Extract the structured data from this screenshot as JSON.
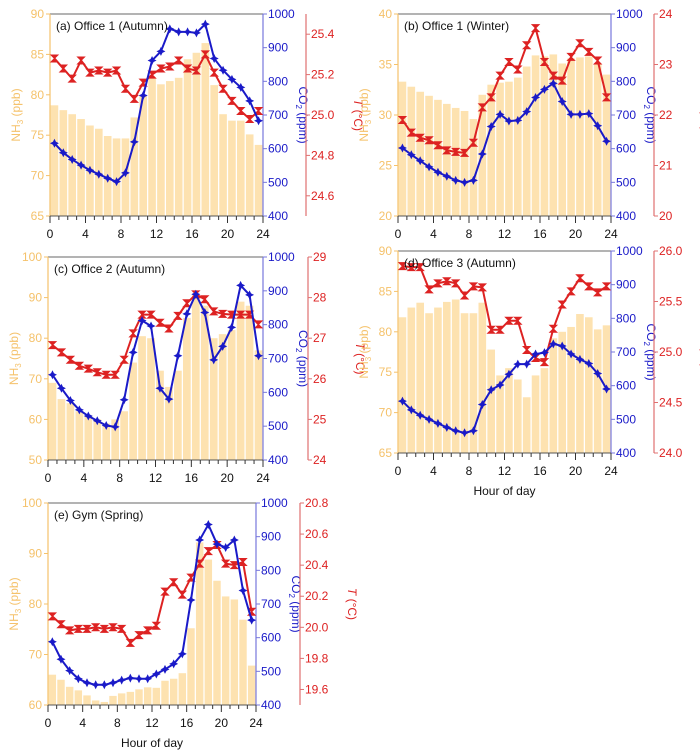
{
  "figure": {
    "xlabel": "Hour of day",
    "colors": {
      "nh3": "#f5c26b",
      "nh3_bar": "#fde2b0",
      "co2": "#1a1ac8",
      "temp": "#dd2222"
    }
  },
  "chart_data": [
    {
      "type": "bar+line",
      "title": "(a) Office 1 (Autumn)",
      "xlabel": "",
      "x": [
        0.5,
        1.5,
        2.5,
        3.5,
        4.5,
        5.5,
        6.5,
        7.5,
        8.5,
        9.5,
        10.5,
        11.5,
        12.5,
        13.5,
        14.5,
        15.5,
        16.5,
        17.5,
        18.5,
        19.5,
        20.5,
        21.5,
        22.5,
        23.5
      ],
      "xlim": [
        0,
        24
      ],
      "xticks": [
        "0",
        "4",
        "8",
        "12",
        "16",
        "20",
        "24"
      ],
      "y_left": {
        "label": "NH3 (ppb)",
        "lim": [
          65,
          90
        ],
        "ticks": [
          "65",
          "70",
          "75",
          "80",
          "85",
          "90"
        ]
      },
      "y_right1": {
        "label": "CO2 (ppm)",
        "lim": [
          400,
          1000
        ],
        "ticks": [
          "400",
          "500",
          "600",
          "700",
          "800",
          "900",
          "1000"
        ]
      },
      "y_right2": {
        "label": "T (°C)",
        "lim": [
          24.5,
          25.5
        ],
        "ticks": [
          "24.6",
          "24.8",
          "25.0",
          "25.2",
          "25.4"
        ]
      },
      "series": [
        {
          "name": "NH3",
          "kind": "bar",
          "values": [
            78.7,
            78.1,
            77.6,
            77.0,
            76.2,
            75.8,
            74.9,
            74.6,
            74.6,
            77.2,
            80.0,
            82.1,
            81.3,
            81.7,
            82.1,
            84.4,
            85.2,
            86.4,
            81.2,
            77.6,
            76.8,
            76.8,
            75.1,
            73.8
          ]
        },
        {
          "name": "CO2",
          "kind": "line",
          "values": [
            616,
            588,
            568,
            551,
            536,
            524,
            512,
            502,
            528,
            620,
            758,
            862,
            889,
            956,
            947,
            947,
            944,
            970,
            868,
            833,
            806,
            782,
            742,
            683
          ]
        },
        {
          "name": "T",
          "kind": "line",
          "values": [
            25.28,
            25.23,
            25.18,
            25.27,
            25.21,
            25.22,
            25.21,
            25.22,
            25.13,
            25.08,
            25.16,
            25.2,
            25.23,
            25.24,
            25.27,
            25.23,
            25.22,
            25.3,
            25.21,
            25.13,
            25.07,
            25.02,
            24.98,
            25.02
          ]
        }
      ]
    },
    {
      "type": "bar+line",
      "title": "(b) Office 1 (Winter)",
      "xlabel": "",
      "x": [
        0.5,
        1.5,
        2.5,
        3.5,
        4.5,
        5.5,
        6.5,
        7.5,
        8.5,
        9.5,
        10.5,
        11.5,
        12.5,
        13.5,
        14.5,
        15.5,
        16.5,
        17.5,
        18.5,
        19.5,
        20.5,
        21.5,
        22.5,
        23.5
      ],
      "xlim": [
        0,
        24
      ],
      "xticks": [
        "0",
        "4",
        "8",
        "12",
        "16",
        "20",
        "24"
      ],
      "y_left": {
        "label": "NH3 (ppb)",
        "lim": [
          20,
          40
        ],
        "ticks": [
          "20",
          "25",
          "30",
          "35",
          "40"
        ]
      },
      "y_right1": {
        "label": "CO2 (ppm)",
        "lim": [
          400,
          1000
        ],
        "ticks": [
          "400",
          "500",
          "600",
          "700",
          "800",
          "900",
          "1000"
        ]
      },
      "y_right2": {
        "label": "T (°C)",
        "lim": [
          20,
          24
        ],
        "ticks": [
          "20",
          "21",
          "22",
          "23",
          "24"
        ]
      },
      "series": [
        {
          "name": "NH3",
          "kind": "bar",
          "values": [
            33.3,
            32.8,
            32.3,
            31.9,
            31.5,
            31.1,
            30.7,
            30.4,
            29.6,
            32.0,
            33.0,
            33.2,
            33.3,
            33.7,
            34.8,
            35.9,
            35.8,
            36.0,
            35.1,
            35.6,
            35.7,
            35.8,
            35.0,
            34.0
          ]
        },
        {
          "name": "CO2",
          "kind": "line",
          "values": [
            602,
            582,
            564,
            546,
            530,
            518,
            506,
            500,
            506,
            584,
            666,
            702,
            682,
            684,
            710,
            752,
            776,
            794,
            740,
            702,
            702,
            704,
            668,
            622
          ]
        },
        {
          "name": "T",
          "kind": "line",
          "values": [
            21.9,
            21.65,
            21.55,
            21.5,
            21.4,
            21.3,
            21.27,
            21.25,
            21.45,
            22.15,
            22.35,
            22.78,
            23.05,
            22.9,
            23.38,
            23.72,
            23.05,
            22.78,
            22.68,
            23.15,
            23.42,
            23.25,
            23.08,
            22.35
          ]
        }
      ]
    },
    {
      "type": "bar+line",
      "title": "(c) Office 2 (Autumn)",
      "xlabel": "",
      "x": [
        0.5,
        1.5,
        2.5,
        3.5,
        4.5,
        5.5,
        6.5,
        7.5,
        8.5,
        9.5,
        10.5,
        11.5,
        12.5,
        13.5,
        14.5,
        15.5,
        16.5,
        17.5,
        18.5,
        19.5,
        20.5,
        21.5,
        22.5,
        23.5
      ],
      "xlim": [
        0,
        24
      ],
      "xticks": [
        "0",
        "4",
        "8",
        "12",
        "16",
        "20",
        "24"
      ],
      "y_left": {
        "label": "NH3 (ppb)",
        "lim": [
          50,
          100
        ],
        "ticks": [
          "50",
          "60",
          "70",
          "80",
          "90",
          "100"
        ]
      },
      "y_right1": {
        "label": "CO2 (ppm)",
        "lim": [
          400,
          1000
        ],
        "ticks": [
          "400",
          "500",
          "600",
          "700",
          "800",
          "900",
          "1000"
        ]
      },
      "y_right2": {
        "label": "T (°C)",
        "lim": [
          24,
          29
        ],
        "ticks": [
          "24",
          "25",
          "26",
          "27",
          "28",
          "29"
        ]
      },
      "series": [
        {
          "name": "NH3",
          "kind": "bar",
          "values": [
            69,
            65,
            64,
            62,
            61,
            60,
            59,
            60,
            62,
            74,
            80.5,
            80,
            72,
            68,
            72,
            85,
            91,
            88,
            80,
            81,
            82,
            89,
            88,
            77
          ]
        },
        {
          "name": "CO2",
          "kind": "line",
          "values": [
            652,
            612,
            576,
            548,
            530,
            516,
            502,
            498,
            578,
            718,
            812,
            796,
            612,
            580,
            708,
            832,
            890,
            836,
            696,
            736,
            792,
            916,
            888,
            708
          ]
        },
        {
          "name": "T",
          "kind": "line",
          "values": [
            26.83,
            26.65,
            26.47,
            26.32,
            26.25,
            26.16,
            26.1,
            26.1,
            26.47,
            27.12,
            27.58,
            27.58,
            27.38,
            27.24,
            27.55,
            27.86,
            28.08,
            27.96,
            27.66,
            27.6,
            27.58,
            27.58,
            27.58,
            27.34
          ]
        }
      ]
    },
    {
      "type": "bar+line",
      "title": "(d) Office 3 (Autumn)",
      "xlabel": "Hour of day",
      "x": [
        0.5,
        1.5,
        2.5,
        3.5,
        4.5,
        5.5,
        6.5,
        7.5,
        8.5,
        9.5,
        10.5,
        11.5,
        12.5,
        13.5,
        14.5,
        15.5,
        16.5,
        17.5,
        18.5,
        19.5,
        20.5,
        21.5,
        22.5,
        23.5
      ],
      "xlim": [
        0,
        24
      ],
      "xticks": [
        "0",
        "4",
        "8",
        "12",
        "16",
        "20",
        "24"
      ],
      "y_left": {
        "label": "NH3 (ppb)",
        "lim": [
          65,
          90
        ],
        "ticks": [
          "65",
          "70",
          "75",
          "80",
          "85",
          "90"
        ]
      },
      "y_right1": {
        "label": "CO2 (ppm)",
        "lim": [
          400,
          1000
        ],
        "ticks": [
          "400",
          "500",
          "600",
          "700",
          "800",
          "900",
          "1000"
        ]
      },
      "y_right2": {
        "label": "T (°C)",
        "lim": [
          24,
          26
        ],
        "ticks": [
          "24.0",
          "24.5",
          "25.0",
          "25.5",
          "26.0"
        ]
      },
      "series": [
        {
          "name": "NH3",
          "kind": "bar",
          "values": [
            81.8,
            83.0,
            83.6,
            82.3,
            83.0,
            83.7,
            84.0,
            82.3,
            82.3,
            83.6,
            77.8,
            74.6,
            75.5,
            74.1,
            71.9,
            74.6,
            75.5,
            79.2,
            80.0,
            80.6,
            82.2,
            81.8,
            80.3,
            80.8
          ]
        },
        {
          "name": "CO2",
          "kind": "line",
          "values": [
            554,
            528,
            512,
            500,
            488,
            476,
            466,
            460,
            466,
            544,
            588,
            602,
            634,
            664,
            664,
            694,
            698,
            724,
            718,
            694,
            678,
            666,
            636,
            590
          ]
        },
        {
          "name": "T",
          "kind": "line",
          "values": [
            25.85,
            25.84,
            25.84,
            25.62,
            25.68,
            25.7,
            25.68,
            25.56,
            25.65,
            25.64,
            25.22,
            25.22,
            25.31,
            25.31,
            25.02,
            24.94,
            24.9,
            25.23,
            25.47,
            25.6,
            25.73,
            25.65,
            25.59,
            25.65
          ]
        }
      ]
    },
    {
      "type": "bar+line",
      "title": "(e) Gym (Spring)",
      "xlabel": "Hour of day",
      "x": [
        0.5,
        1.5,
        2.5,
        3.5,
        4.5,
        5.5,
        6.5,
        7.5,
        8.5,
        9.5,
        10.5,
        11.5,
        12.5,
        13.5,
        14.5,
        15.5,
        16.5,
        17.5,
        18.5,
        19.5,
        20.5,
        21.5,
        22.5,
        23.5
      ],
      "xlim": [
        0,
        24
      ],
      "xticks": [
        "0",
        "4",
        "8",
        "12",
        "16",
        "20",
        "24"
      ],
      "y_left": {
        "label": "NH3 (ppb)",
        "lim": [
          60,
          100
        ],
        "ticks": [
          "60",
          "70",
          "80",
          "90",
          "100"
        ]
      },
      "y_right1": {
        "label": "CO2 (ppm)",
        "lim": [
          400,
          1000
        ],
        "ticks": [
          "400",
          "500",
          "600",
          "700",
          "800",
          "900",
          "1000"
        ]
      },
      "y_right2": {
        "label": "T (°C)",
        "lim": [
          19.5,
          20.8
        ],
        "ticks": [
          "19.6",
          "19.8",
          "20.0",
          "20.2",
          "20.4",
          "20.6",
          "20.8"
        ]
      },
      "series": [
        {
          "name": "NH3",
          "kind": "bar",
          "values": [
            66,
            65,
            63.6,
            62.9,
            61.9,
            60.9,
            60.6,
            61.8,
            62.3,
            62.6,
            63.1,
            63.5,
            63.4,
            64.8,
            65.2,
            66.3,
            75.2,
            92.2,
            88.8,
            84.6,
            81.5,
            80.9,
            76.9,
            67.8
          ]
        },
        {
          "name": "CO2",
          "kind": "line",
          "values": [
            588,
            536,
            502,
            478,
            466,
            460,
            460,
            466,
            474,
            480,
            478,
            478,
            492,
            506,
            522,
            552,
            712,
            890,
            936,
            878,
            868,
            890,
            740,
            652
          ]
        },
        {
          "name": "T",
          "kind": "line",
          "values": [
            20.07,
            20.02,
            19.98,
            19.99,
            19.99,
            20.0,
            19.99,
            20.0,
            19.99,
            19.9,
            19.95,
            19.98,
            20.01,
            20.23,
            20.29,
            20.21,
            20.32,
            20.41,
            20.49,
            20.53,
            20.41,
            20.4,
            20.42,
            20.1
          ]
        }
      ]
    }
  ]
}
